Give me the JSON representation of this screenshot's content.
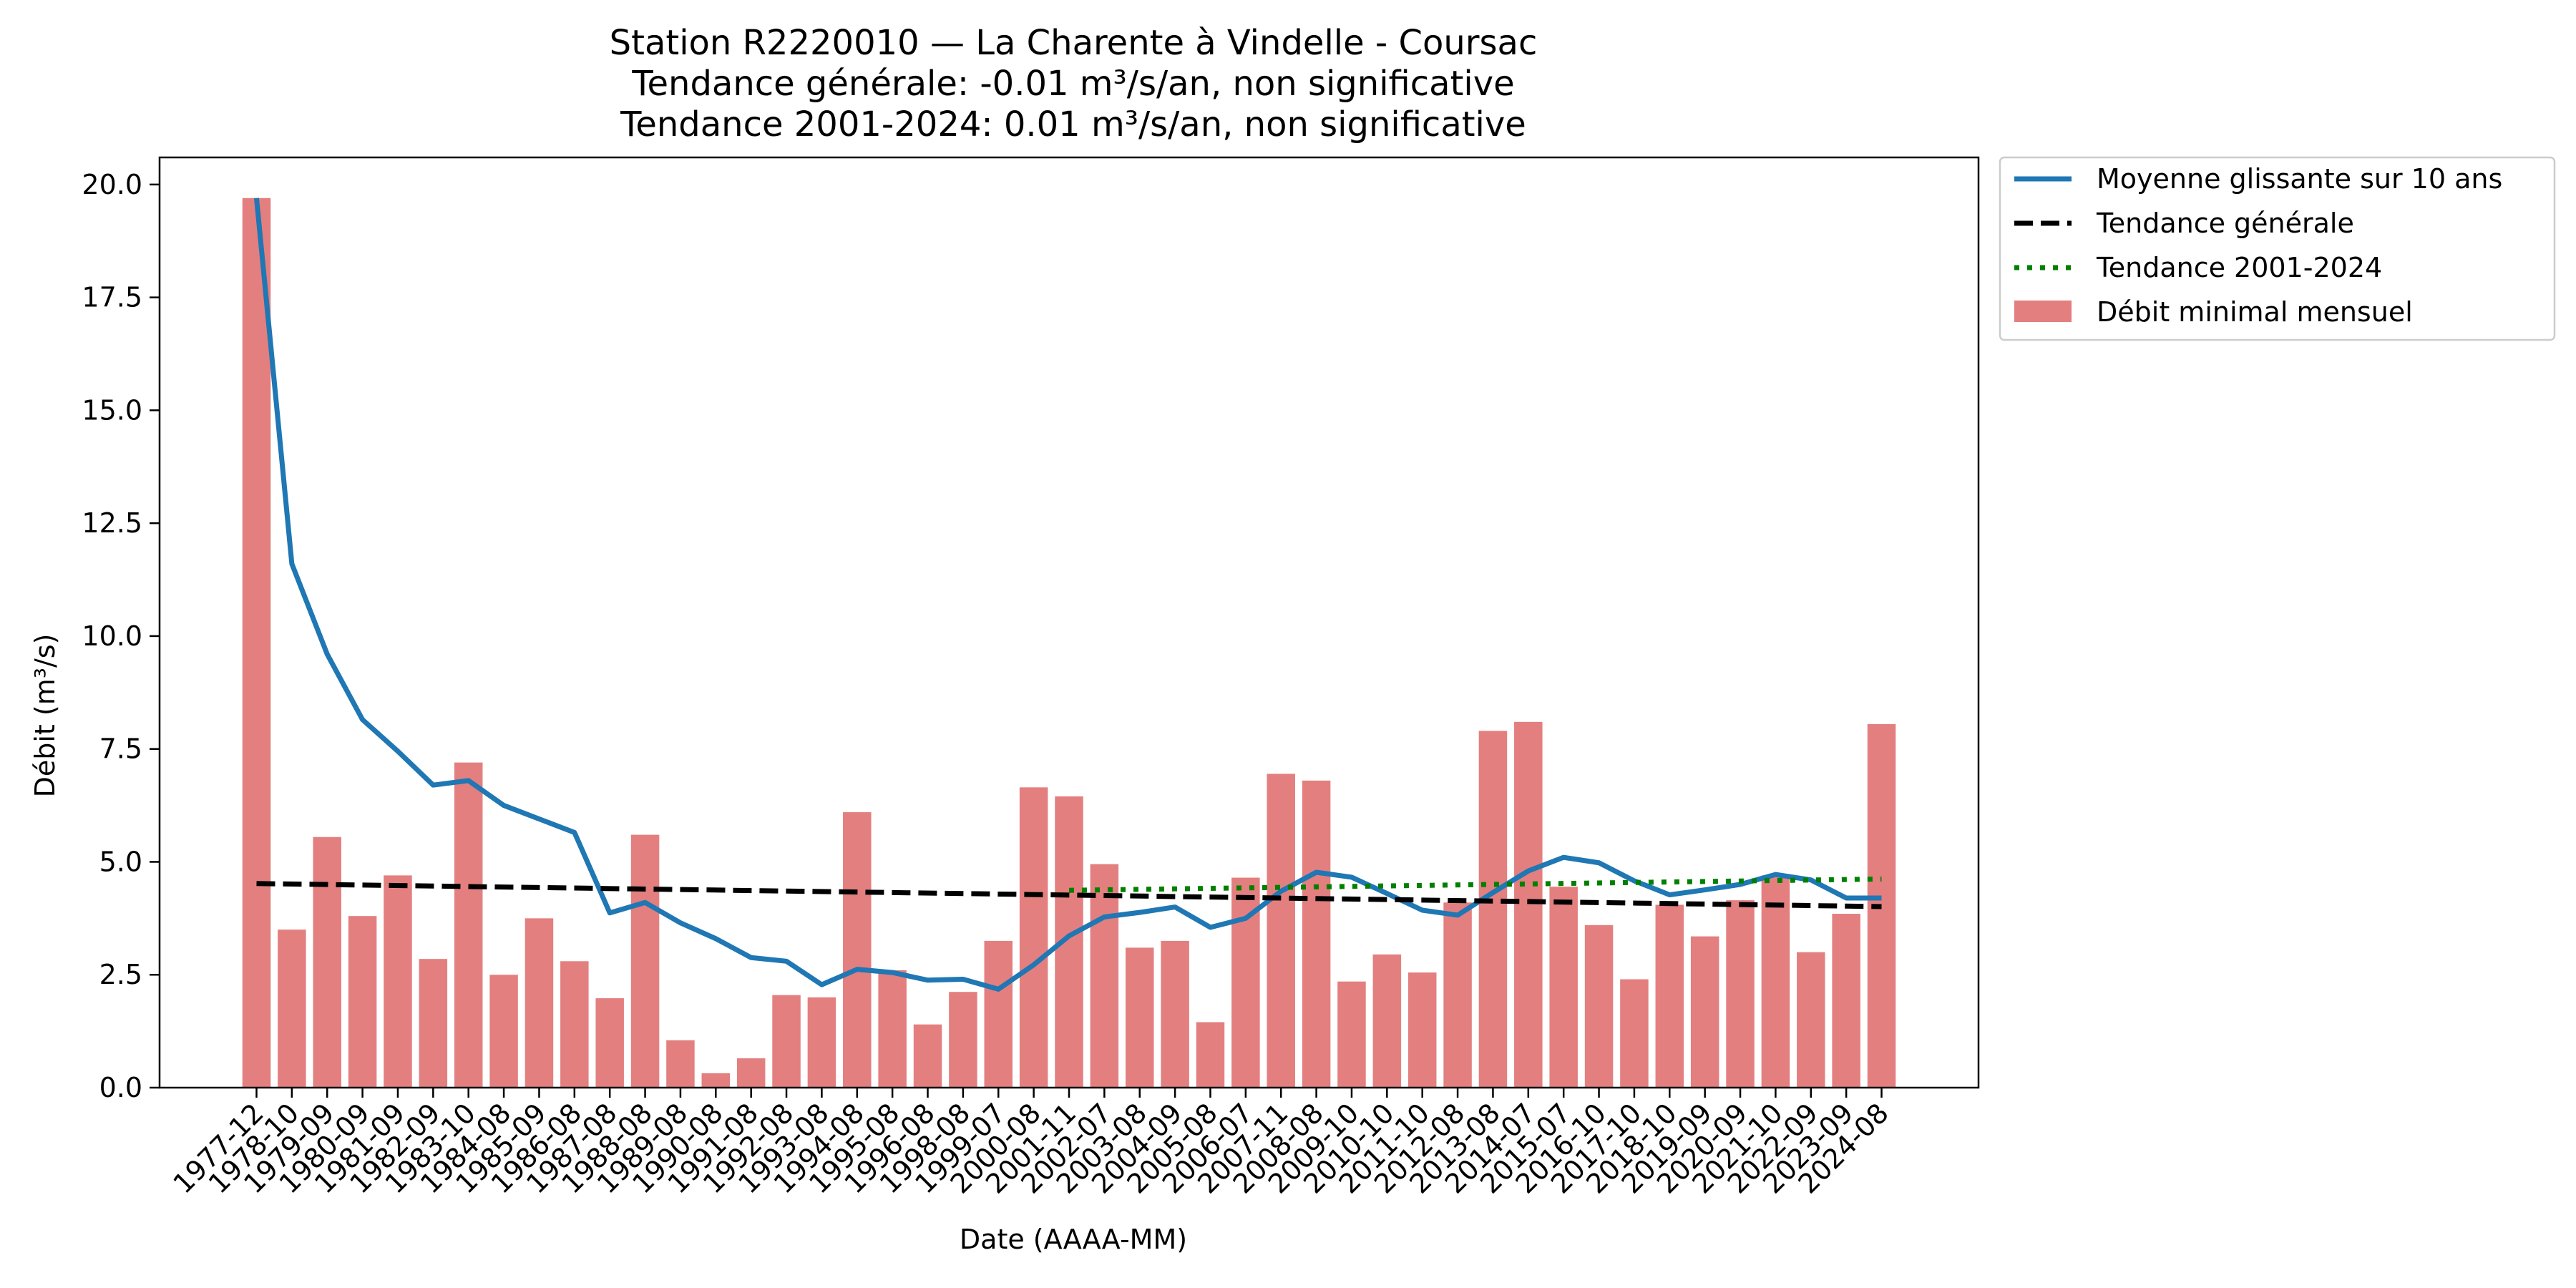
{
  "chart_data": {
    "type": "bar",
    "title_lines": [
      "Station R2220010 — La Charente à Vindelle - Coursac",
      "Tendance générale: -0.01 m³/s/an, non significative",
      "Tendance 2001-2024: 0.01 m³/s/an, non significative"
    ],
    "xlabel": "Date (AAAA-MM)",
    "ylabel": "Débit (m³/s)",
    "ylim": [
      0,
      20.6
    ],
    "yticks": [
      "0.0",
      "2.5",
      "5.0",
      "7.5",
      "10.0",
      "12.5",
      "15.0",
      "17.5",
      "20.0"
    ],
    "grid": false,
    "legend_position": "outside-top-right",
    "categories": [
      "1977-12",
      "1978-10",
      "1979-09",
      "1980-09",
      "1981-09",
      "1982-09",
      "1983-10",
      "1984-08",
      "1985-09",
      "1986-08",
      "1987-08",
      "1988-08",
      "1989-08",
      "1990-08",
      "1991-08",
      "1992-08",
      "1993-08",
      "1994-08",
      "1995-08",
      "1996-08",
      "1998-08",
      "1999-07",
      "2000-08",
      "2001-11",
      "2002-07",
      "2003-08",
      "2004-09",
      "2005-08",
      "2006-07",
      "2007-11",
      "2008-08",
      "2009-10",
      "2010-10",
      "2011-10",
      "2012-08",
      "2013-08",
      "2014-07",
      "2015-07",
      "2016-10",
      "2017-10",
      "2018-10",
      "2019-09",
      "2020-09",
      "2021-10",
      "2022-09",
      "2023-09",
      "2024-08"
    ],
    "series": [
      {
        "name": "Débit minimal mensuel",
        "type": "bar",
        "color": "#e47f7f",
        "values": [
          19.7,
          3.5,
          5.55,
          3.8,
          4.7,
          2.85,
          7.2,
          2.5,
          3.75,
          2.8,
          1.98,
          5.6,
          1.05,
          0.32,
          0.65,
          2.05,
          2.0,
          6.1,
          2.6,
          1.4,
          2.12,
          3.25,
          6.65,
          6.45,
          4.95,
          3.1,
          3.25,
          1.45,
          4.65,
          6.95,
          6.8,
          2.35,
          2.95,
          2.55,
          4.1,
          7.9,
          8.1,
          4.45,
          3.6,
          2.4,
          4.05,
          3.35,
          4.15,
          4.7,
          3.0,
          3.85,
          8.05
        ]
      },
      {
        "name": "Moyenne glissante sur 10 ans",
        "type": "line",
        "color": "#1f77b4",
        "style": "solid",
        "values": [
          19.7,
          11.6,
          9.6,
          8.15,
          7.45,
          6.7,
          6.8,
          6.25,
          5.95,
          5.65,
          3.87,
          4.1,
          3.65,
          3.3,
          2.88,
          2.8,
          2.28,
          2.62,
          2.55,
          2.38,
          2.4,
          2.18,
          2.72,
          3.36,
          3.78,
          3.88,
          4.0,
          3.55,
          3.75,
          4.35,
          4.77,
          4.66,
          4.3,
          3.93,
          3.82,
          4.32,
          4.8,
          5.1,
          4.98,
          4.58,
          4.27,
          4.38,
          4.5,
          4.72,
          4.6,
          4.2,
          4.2
        ]
      },
      {
        "name": "Tendance générale",
        "type": "line",
        "color": "#000000",
        "style": "dashed",
        "x_start": "1977-12",
        "x_end": "2024-08",
        "y_start": 4.52,
        "y_end": 4.01
      },
      {
        "name": "Tendance 2001-2024",
        "type": "line",
        "color": "#008000",
        "style": "dotted",
        "x_start": "2001-11",
        "x_end": "2024-08",
        "y_start": 4.37,
        "y_end": 4.62
      }
    ]
  }
}
